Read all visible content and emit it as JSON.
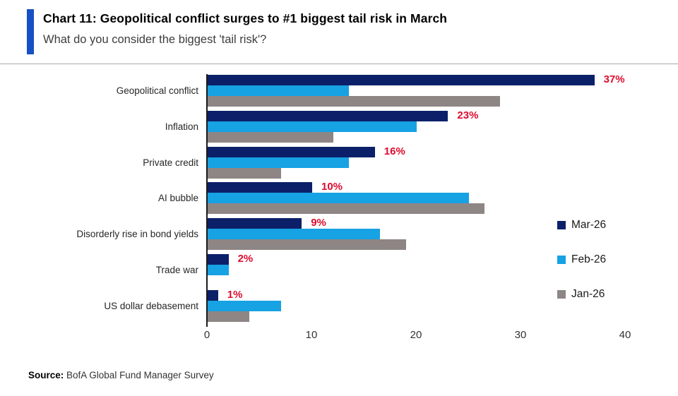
{
  "header": {
    "title": "Chart 11: Geopolitical conflict surges to #1 biggest tail risk in March",
    "subtitle": "What do you consider the biggest 'tail risk'?"
  },
  "chart_data": {
    "type": "bar",
    "orientation": "horizontal",
    "title": "Chart 11: Geopolitical conflict surges to #1 biggest tail risk in March",
    "question": "What do you consider the biggest 'tail risk'?",
    "categories": [
      "Geopolitical conflict",
      "Inflation",
      "Private credit",
      "AI bubble",
      "Disorderly rise in bond yields",
      "Trade war",
      "US dollar debasement"
    ],
    "series": [
      {
        "name": "Mar-26",
        "color": "#0c2069",
        "values": [
          37,
          23,
          16,
          10,
          9,
          2,
          1
        ]
      },
      {
        "name": "Feb-26",
        "color": "#17a2e3",
        "values": [
          13.5,
          20,
          13.5,
          25,
          16.5,
          2,
          7
        ]
      },
      {
        "name": "Jan-26",
        "color": "#8e8684",
        "values": [
          28,
          12,
          7,
          26.5,
          19,
          0,
          4
        ]
      }
    ],
    "data_labels": [
      "37%",
      "23%",
      "16%",
      "10%",
      "9%",
      "2%",
      "1%"
    ],
    "data_label_color": "#dd0c2e",
    "xticks": [
      0,
      10,
      20,
      30,
      40
    ],
    "xlim": [
      0,
      40
    ],
    "grid": false,
    "legend_position": "right",
    "unit": "percent of survey respondents"
  },
  "source": {
    "label": "Source:",
    "text": " BofA Global Fund Manager Survey"
  },
  "colors": {
    "accent_bar": "#1550c4",
    "mar26": "#0c2069",
    "feb26": "#17a2e3",
    "jan26": "#8e8684",
    "data_label_red": "#dd0c2e"
  }
}
